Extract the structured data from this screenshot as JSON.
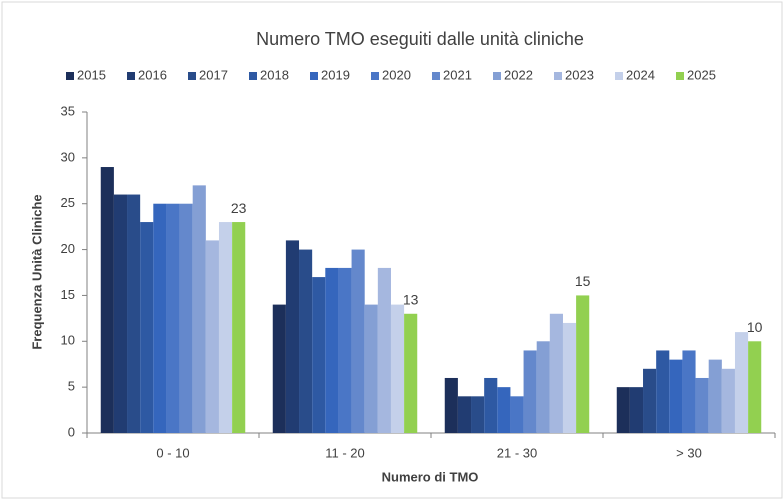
{
  "chart_data": {
    "type": "bar",
    "title": "Numero TMO eseguiti dalle unità cliniche",
    "x_label": "Numero di TMO",
    "y_label": "Frequenza Unità Cliniche",
    "categories": [
      "0 - 10",
      "11 - 20",
      "21 - 30",
      "> 30"
    ],
    "ylim": [
      0,
      35
    ],
    "yticks": [
      0,
      5,
      10,
      15,
      20,
      25,
      30,
      35
    ],
    "grid": false,
    "legend": "top",
    "series": [
      {
        "name": "2015",
        "color": "#1c2f5a",
        "values": [
          29,
          14,
          6,
          5
        ]
      },
      {
        "name": "2016",
        "color": "#213c72",
        "values": [
          26,
          21,
          4,
          5
        ]
      },
      {
        "name": "2017",
        "color": "#294c8a",
        "values": [
          26,
          20,
          4,
          7
        ]
      },
      {
        "name": "2018",
        "color": "#2e59a3",
        "values": [
          23,
          17,
          6,
          9
        ]
      },
      {
        "name": "2019",
        "color": "#3566bd",
        "values": [
          25,
          18,
          5,
          8
        ]
      },
      {
        "name": "2020",
        "color": "#4a76c6",
        "values": [
          25,
          18,
          4,
          9
        ]
      },
      {
        "name": "2021",
        "color": "#6488cc",
        "values": [
          25,
          20,
          9,
          6
        ]
      },
      {
        "name": "2022",
        "color": "#849fd4",
        "values": [
          27,
          14,
          10,
          8
        ]
      },
      {
        "name": "2023",
        "color": "#a5b7df",
        "values": [
          21,
          18,
          13,
          7
        ]
      },
      {
        "name": "2024",
        "color": "#c4d0ea",
        "values": [
          23,
          14,
          12,
          11
        ]
      },
      {
        "name": "2025",
        "color": "#92d050",
        "values": [
          23,
          13,
          15,
          10
        ],
        "show_labels": true
      }
    ]
  }
}
